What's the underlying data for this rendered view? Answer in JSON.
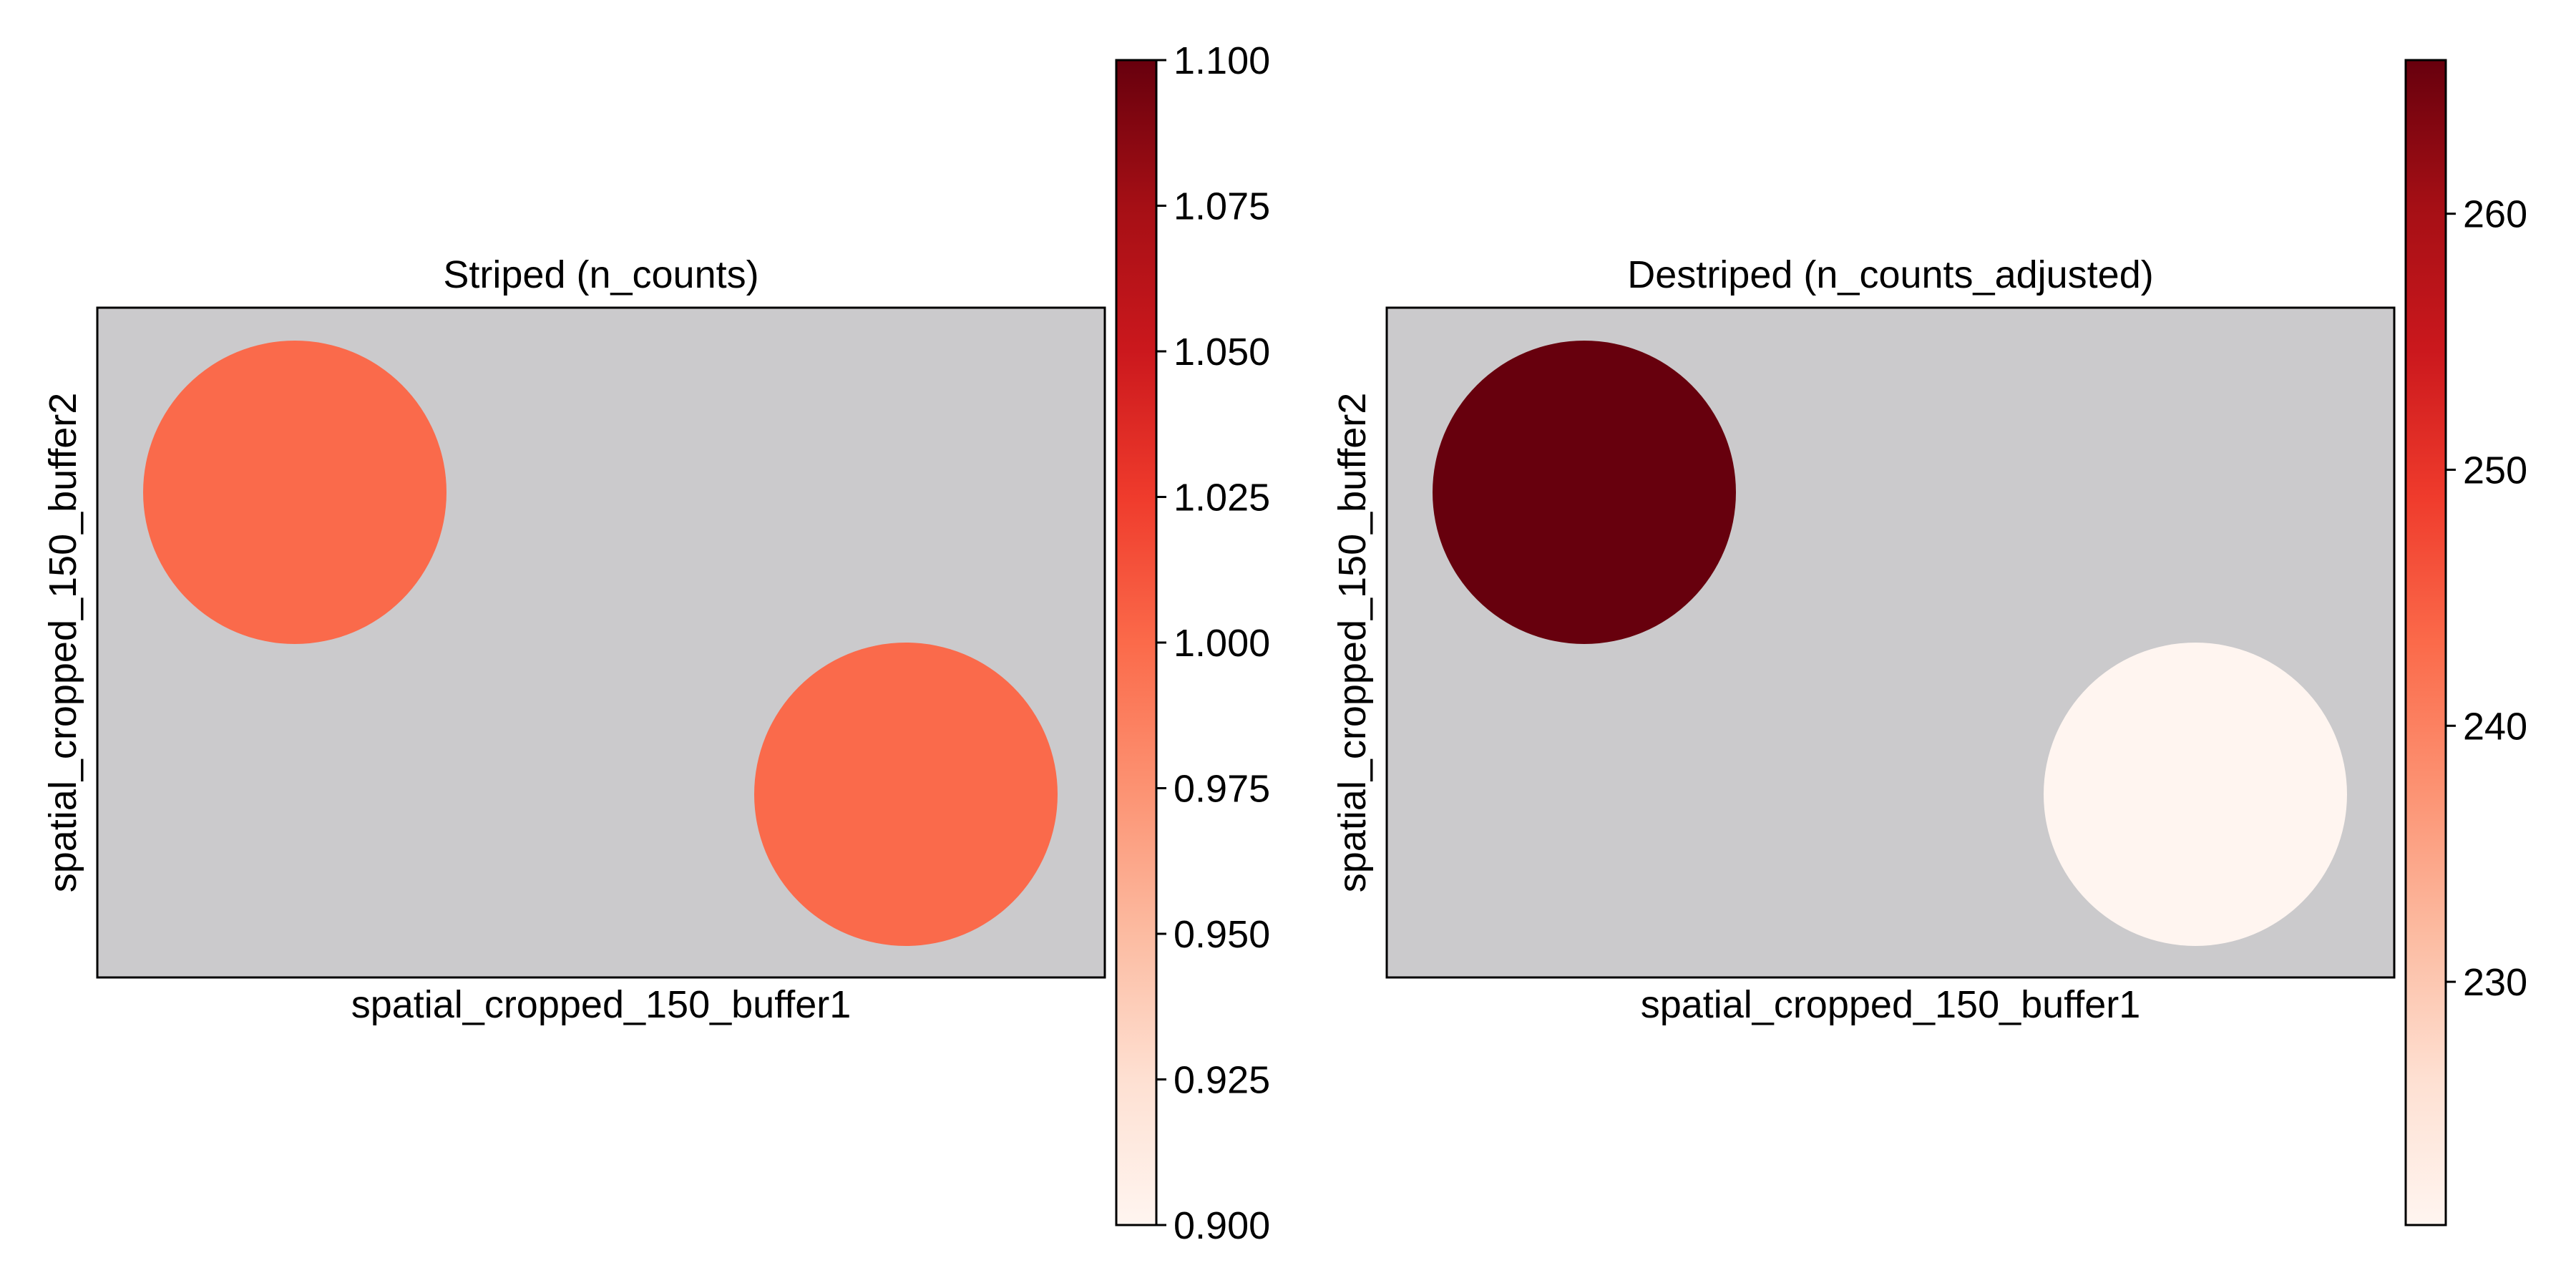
{
  "colors": {
    "background_patch": "#cbcacc",
    "colormap_low": "#fff5f0",
    "colormap_mid": "#f6553c",
    "colormap_high": "#67000d"
  },
  "chart_data": [
    {
      "type": "scatter",
      "title": "Striped (n_counts)",
      "xlabel": "spatial_cropped_150_buffer1",
      "ylabel": "spatial_cropped_150_buffer2",
      "points": [
        {
          "x": 0,
          "y": 0,
          "value": 1.0,
          "color": "#fa6a4b"
        },
        {
          "x": 1,
          "y": 1,
          "value": 1.0,
          "color": "#fa6a4b"
        }
      ],
      "colorbar": {
        "cmap": "Reds",
        "vmin": 0.9,
        "vmax": 1.1,
        "ticks": [
          0.9,
          0.925,
          0.95,
          0.975,
          1.0,
          1.025,
          1.05,
          1.075,
          1.1
        ],
        "tick_labels": [
          "0.900",
          "0.925",
          "0.950",
          "0.975",
          "1.000",
          "1.025",
          "1.050",
          "1.075",
          "1.100"
        ]
      }
    },
    {
      "type": "scatter",
      "title": "Destriped (n_counts_adjusted)",
      "xlabel": "spatial_cropped_150_buffer1",
      "ylabel": "spatial_cropped_150_buffer2",
      "points": [
        {
          "x": 0,
          "y": 0,
          "value": 266,
          "color": "#67000d"
        },
        {
          "x": 1,
          "y": 1,
          "value": 220.5,
          "color": "#fff5f0"
        }
      ],
      "colorbar": {
        "cmap": "Reds",
        "vmin": 220.5,
        "vmax": 266,
        "ticks": [
          230,
          240,
          250,
          260
        ],
        "tick_labels": [
          "230",
          "240",
          "250",
          "260"
        ]
      }
    }
  ]
}
